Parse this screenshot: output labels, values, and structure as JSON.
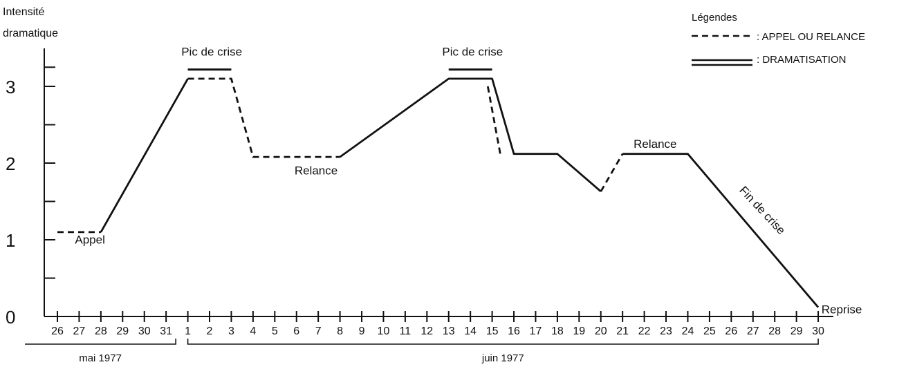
{
  "chart_data": {
    "type": "line",
    "title": "",
    "ylabel_lines": [
      "Intensité",
      "dramatique"
    ],
    "xlabel": "",
    "ylim": [
      0,
      3.5
    ],
    "ytick_labels": [
      "0",
      "1",
      "2",
      "3"
    ],
    "ytick_minor": [
      0.5,
      1.5,
      2.5,
      3.25
    ],
    "x_categories": [
      "26",
      "27",
      "28",
      "29",
      "30",
      "31",
      "1",
      "2",
      "3",
      "4",
      "5",
      "6",
      "7",
      "8",
      "9",
      "10",
      "11",
      "12",
      "13",
      "14",
      "15",
      "16",
      "17",
      "18",
      "19",
      "20",
      "21",
      "22",
      "23",
      "24",
      "25",
      "26",
      "27",
      "28",
      "29",
      "30"
    ],
    "month_groups": [
      {
        "label": "mai 1977",
        "from": 0,
        "to": 5
      },
      {
        "label": "juin 1977",
        "from": 6,
        "to": 35
      }
    ],
    "legend": {
      "title": "Légendes",
      "entries": [
        {
          "style": "dashed",
          "label": ": APPEL OU RELANCE"
        },
        {
          "style": "double",
          "label": ": DRAMATISATION"
        }
      ]
    },
    "series": [
      {
        "style": "dashed",
        "points": [
          [
            0,
            1.1
          ],
          [
            2,
            1.1
          ]
        ]
      },
      {
        "style": "solid",
        "points": [
          [
            2,
            1.1
          ],
          [
            6,
            3.1
          ]
        ]
      },
      {
        "style": "dashed",
        "points": [
          [
            6,
            3.1
          ],
          [
            8,
            3.1
          ],
          [
            9,
            2.08
          ],
          [
            13,
            2.08
          ]
        ]
      },
      {
        "style": "solid",
        "points": [
          [
            13,
            2.08
          ],
          [
            18,
            3.1
          ],
          [
            20,
            3.1
          ],
          [
            21,
            2.12
          ],
          [
            23,
            2.12
          ],
          [
            25,
            1.63
          ]
        ]
      },
      {
        "style": "dashed",
        "points": [
          [
            19.8,
            3.0
          ],
          [
            20.4,
            2.08
          ]
        ]
      },
      {
        "style": "dashed",
        "points": [
          [
            25,
            1.63
          ],
          [
            26,
            2.12
          ]
        ]
      },
      {
        "style": "solid",
        "points": [
          [
            26,
            2.12
          ],
          [
            29,
            2.12
          ],
          [
            35,
            0.12
          ]
        ]
      }
    ],
    "crisis_bars": [
      {
        "from": 6,
        "to": 8,
        "y": 3.22
      },
      {
        "from": 18,
        "to": 20,
        "y": 3.22
      }
    ],
    "annotations": [
      {
        "text": "Appel",
        "x": 1.5,
        "y": 0.95,
        "anchor": "middle",
        "rotate": 0
      },
      {
        "text": "Pic de crise",
        "x": 7.1,
        "y": 3.4,
        "anchor": "middle",
        "rotate": 0
      },
      {
        "text": "Relance",
        "x": 11.9,
        "y": 1.85,
        "anchor": "middle",
        "rotate": 0
      },
      {
        "text": "Pic de crise",
        "x": 19.1,
        "y": 3.4,
        "anchor": "middle",
        "rotate": 0
      },
      {
        "text": "Relance",
        "x": 27.5,
        "y": 2.2,
        "anchor": "middle",
        "rotate": 0
      },
      {
        "text": "Fin de crise",
        "x": 32.3,
        "y": 1.35,
        "anchor": "middle",
        "rotate": 47
      },
      {
        "text": "Reprise",
        "x": 35.15,
        "y": 0.04,
        "anchor": "start",
        "rotate": 0
      }
    ]
  }
}
